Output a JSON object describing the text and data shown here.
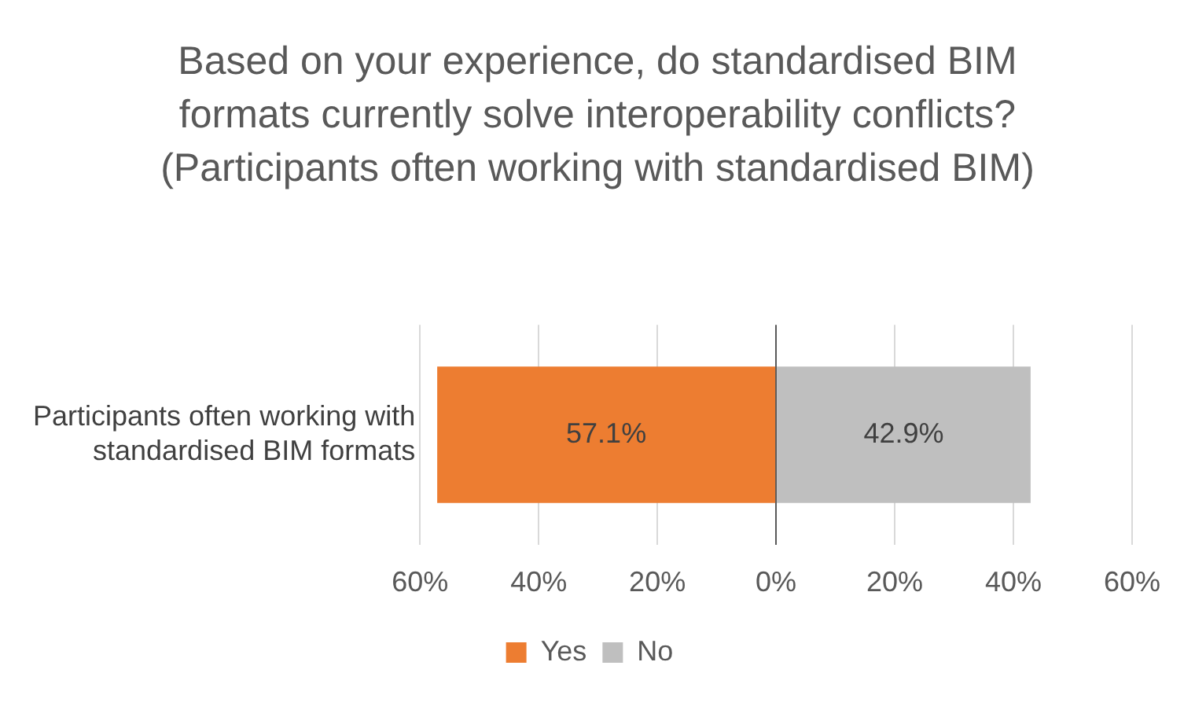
{
  "chart_data": {
    "type": "bar",
    "orientation": "horizontal",
    "title": "Based on your experience, do standardised BIM formats currently solve interoperability conflicts? (Participants often working with standardised BIM)",
    "categories": [
      "Participants often working with standardised BIM formats"
    ],
    "series": [
      {
        "name": "Yes",
        "color": "#ed7d31",
        "base": [
          -57.1
        ],
        "values": [
          57.1
        ],
        "value_labels": [
          "57.1%"
        ]
      },
      {
        "name": "No",
        "color": "#bfbfbf",
        "base": [
          0
        ],
        "values": [
          42.9
        ],
        "value_labels": [
          "42.9%"
        ]
      }
    ],
    "xlim": [
      -60,
      60
    ],
    "xticks": [
      {
        "value": -60,
        "label": "60%"
      },
      {
        "value": -40,
        "label": "40%"
      },
      {
        "value": -20,
        "label": "20%"
      },
      {
        "value": 0,
        "label": "0%"
      },
      {
        "value": 20,
        "label": "20%"
      },
      {
        "value": 40,
        "label": "40%"
      },
      {
        "value": 60,
        "label": "60%"
      }
    ],
    "grid": "x",
    "legend": "bottom"
  }
}
